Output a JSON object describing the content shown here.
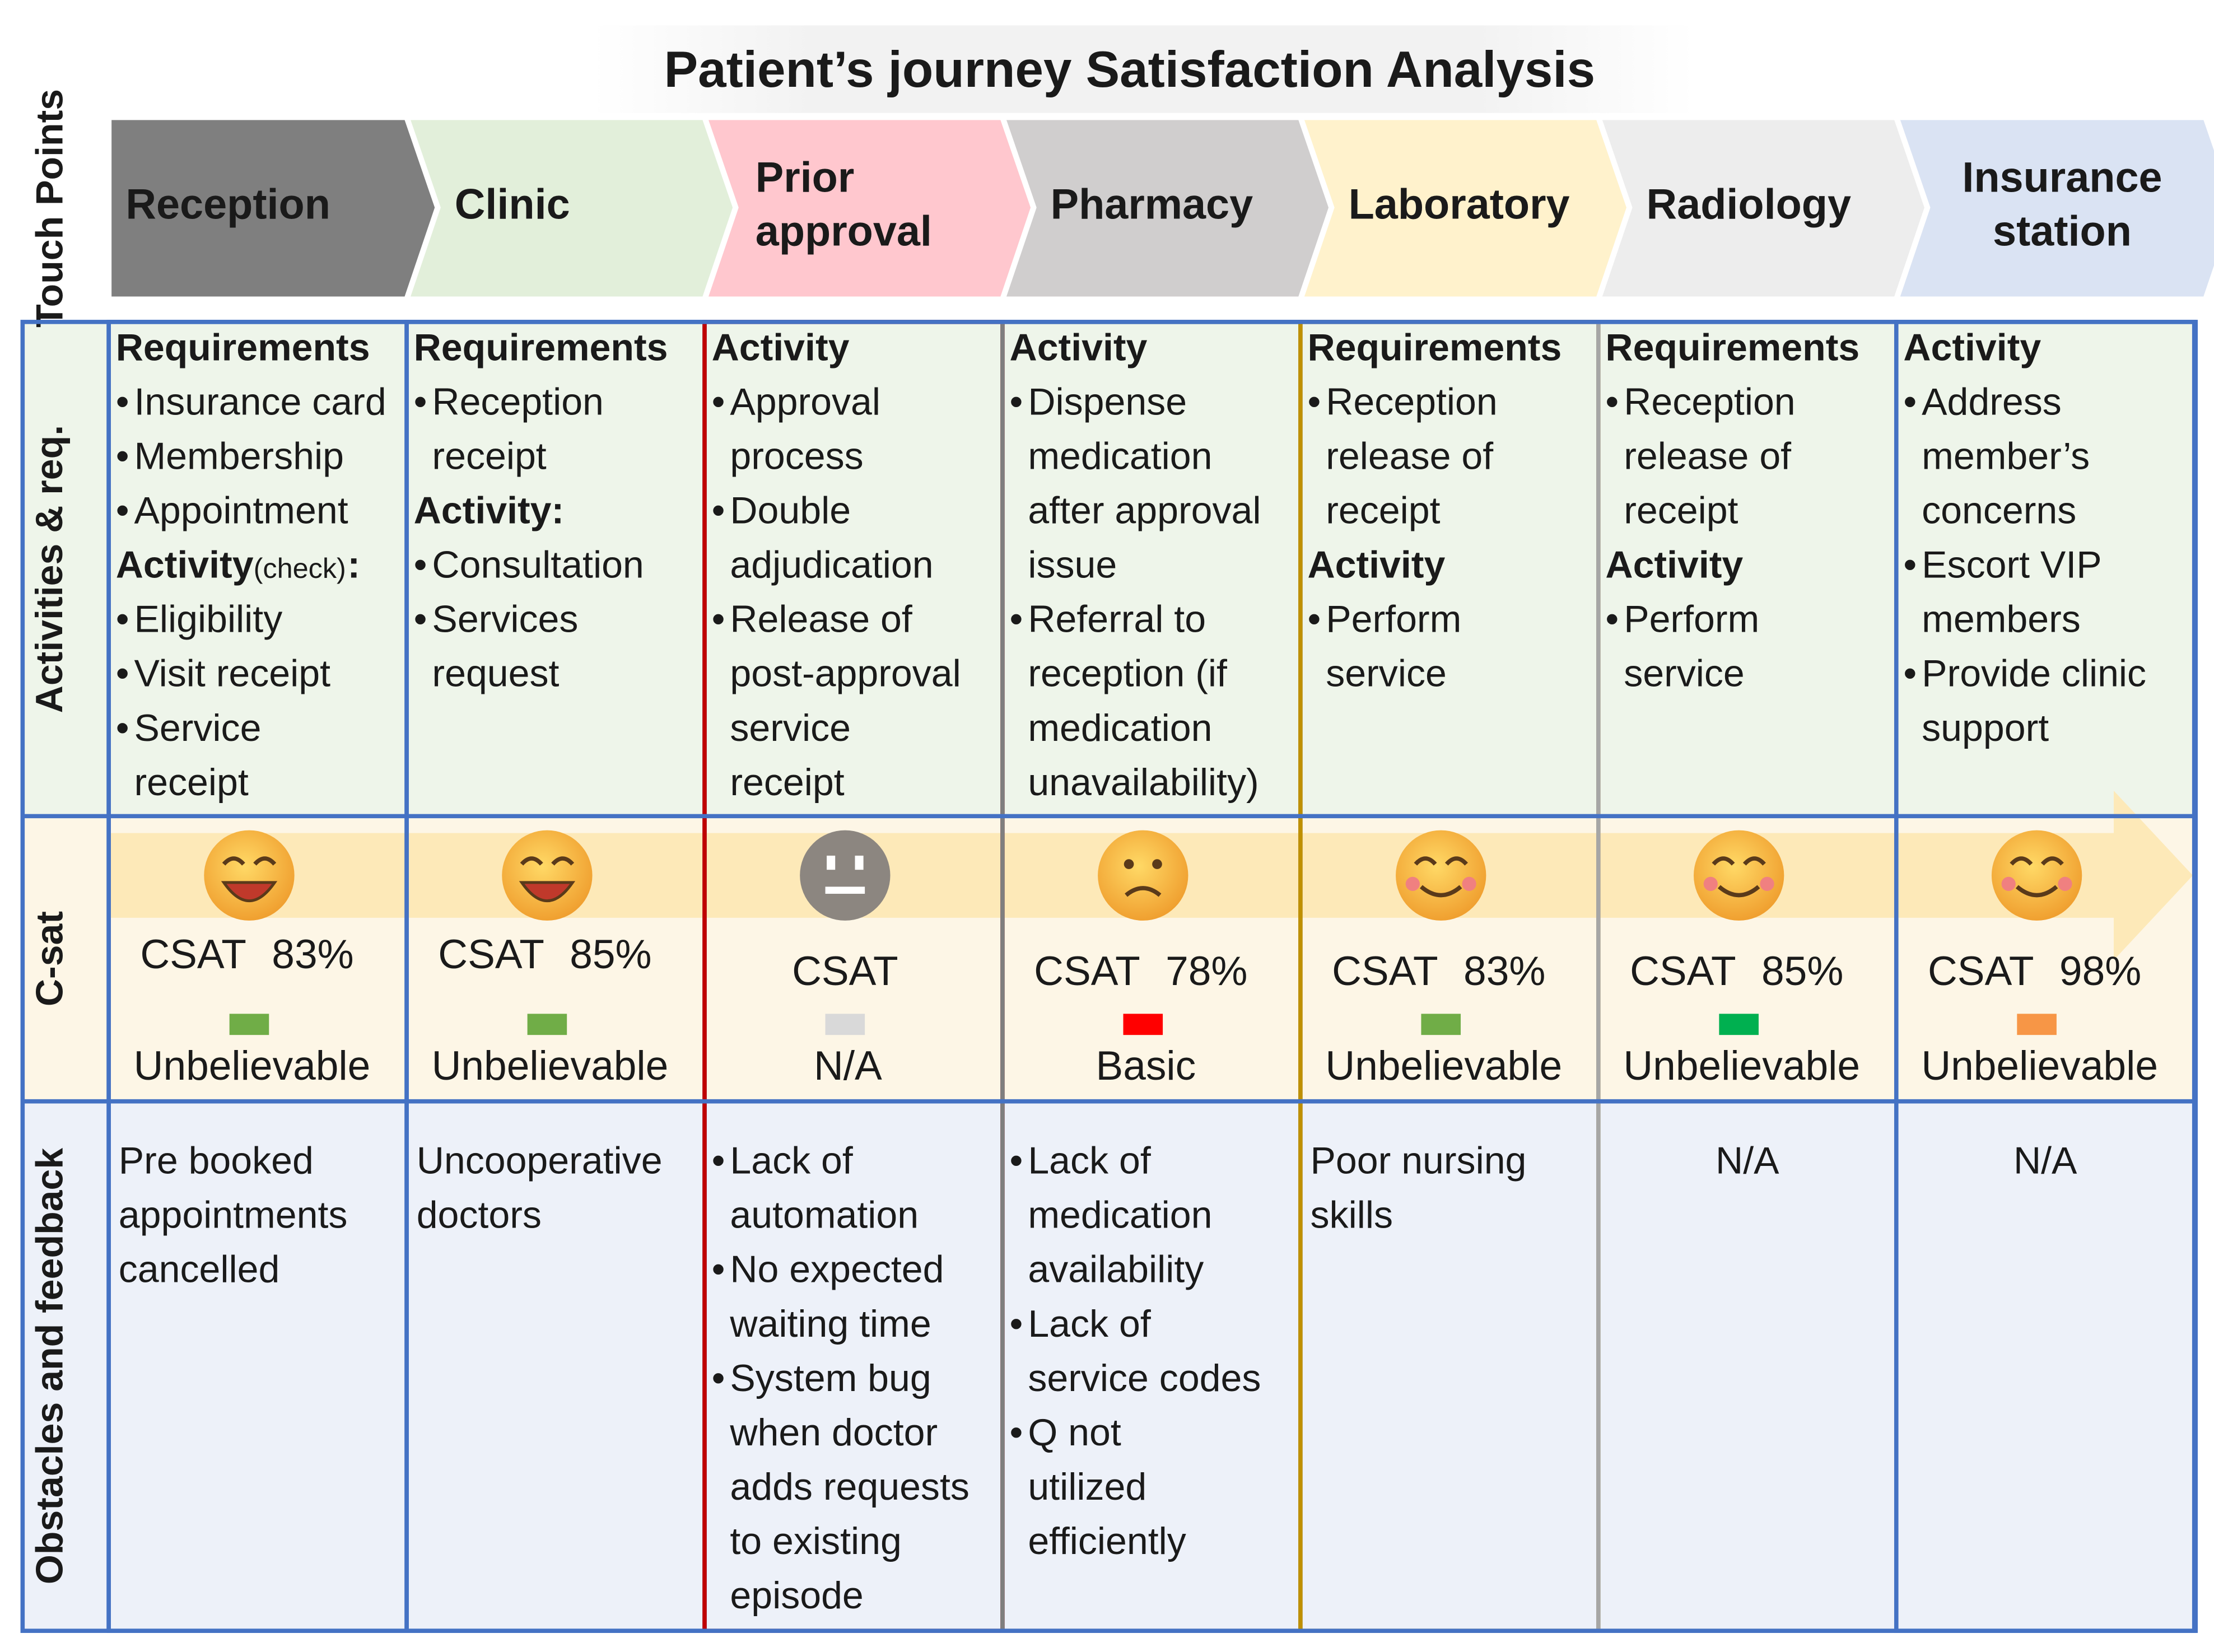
{
  "title": "Patient’s journey Satisfaction Analysis",
  "row_labels": [
    "Touch Points",
    "Activities & req.",
    "C-sat",
    "Obstacles and feedback"
  ],
  "stages": [
    {
      "name": [
        "Reception"
      ],
      "fill": "#7f7f7f",
      "text_color": "#000000",
      "border": "#4472c4",
      "activities": [
        {
          "heading": "Requirements",
          "bullets": [
            [
              "Insurance card"
            ],
            [
              "Membership"
            ],
            [
              "Appointment"
            ]
          ]
        },
        {
          "heading": "Activity",
          "note": "(check)",
          "colon": ":",
          "bullets": [
            [
              "Eligibility"
            ],
            [
              "Visit receipt"
            ],
            [
              "Service",
              "receipt"
            ]
          ]
        }
      ],
      "csat": {
        "label": "CSAT",
        "value": "83%",
        "mood": "laugh",
        "bar_color": "#70ad47",
        "rating": "Unbelievable"
      },
      "feedback": {
        "lines": [
          "Pre booked",
          "appointments",
          "cancelled"
        ]
      }
    },
    {
      "name": [
        "Clinic"
      ],
      "fill": "#e2efda",
      "text_color": "#000000",
      "border": "#4472c4",
      "activities": [
        {
          "heading": "Requirements",
          "bullets": [
            [
              "Reception",
              "receipt"
            ]
          ]
        },
        {
          "heading": "Activity:",
          "bullets": [
            [
              "Consultation"
            ],
            [
              "Services",
              "request"
            ]
          ]
        }
      ],
      "csat": {
        "label": "CSAT",
        "value": "85%",
        "mood": "laugh",
        "bar_color": "#70ad47",
        "rating": "Unbelievable"
      },
      "feedback": {
        "lines": [
          "Uncooperative",
          "doctors"
        ]
      }
    },
    {
      "name": [
        "Prior",
        "approval"
      ],
      "fill": "#ffc7ce",
      "text_color": "#000000",
      "border": "#c00000",
      "activities": [
        {
          "heading": "Activity",
          "bullets": [
            [
              "Approval",
              "process"
            ],
            [
              "Double",
              "adjudication"
            ],
            [
              "Release of",
              "post-approval",
              "service",
              "receipt"
            ]
          ]
        }
      ],
      "csat": {
        "label": "CSAT",
        "mood": "neutral",
        "bar_color": "#d9d9d9",
        "rating": "N/A"
      },
      "feedback": {
        "bullets": [
          [
            "Lack of",
            "automation"
          ],
          [
            "No expected",
            "waiting time"
          ],
          [
            "System bug",
            "when doctor",
            "adds requests",
            "to existing",
            "episode"
          ]
        ]
      }
    },
    {
      "name": [
        "Pharmacy"
      ],
      "fill": "#d0cece",
      "text_color": "#000000",
      "border": "#7f7f7f",
      "activities": [
        {
          "heading": "Activity",
          "bullets": [
            [
              "Dispense",
              "medication",
              "after approval",
              "issue"
            ],
            [
              "Referral to",
              "reception (if",
              "medication",
              "unavailability)"
            ]
          ]
        }
      ],
      "csat": {
        "label": "CSAT",
        "value": "78%",
        "mood": "sad",
        "bar_color": "#ff0000",
        "rating": "Basic"
      },
      "feedback": {
        "bullets": [
          [
            "Lack of",
            "medication",
            "availability"
          ],
          [
            "Lack of",
            "service codes"
          ],
          [
            "Q not",
            "utilized",
            "efficiently"
          ]
        ]
      }
    },
    {
      "name": [
        "Laboratory"
      ],
      "fill": "#fff2cc",
      "text_color": "#000000",
      "border": "#bf9000",
      "activities": [
        {
          "heading": "Requirements",
          "bullets": [
            [
              "Reception",
              "release of",
              "receipt"
            ]
          ]
        },
        {
          "heading": "Activity",
          "bullets": [
            [
              "Perform",
              "service"
            ]
          ]
        }
      ],
      "csat": {
        "label": "CSAT",
        "value": "83%",
        "mood": "smile",
        "bar_color": "#70ad47",
        "rating": "Unbelievable"
      },
      "feedback": {
        "lines": [
          "Poor nursing",
          "skills"
        ]
      }
    },
    {
      "name": [
        "Radiology"
      ],
      "fill": "#ededed",
      "text_color": "#000000",
      "border": "#a6a6a6",
      "activities": [
        {
          "heading": "Requirements",
          "bullets": [
            [
              "Reception",
              "release of",
              "receipt"
            ]
          ]
        },
        {
          "heading": "Activity",
          "bullets": [
            [
              "Perform",
              "service"
            ]
          ]
        }
      ],
      "csat": {
        "label": "CSAT",
        "value": "85%",
        "mood": "smile",
        "bar_color": "#00b050",
        "rating": "Unbelievable"
      },
      "feedback": {
        "lines": [
          "N/A"
        ],
        "align": "center"
      }
    },
    {
      "name": [
        "Insurance",
        "station"
      ],
      "fill": "#dae3f3",
      "text_color": "#000000",
      "border": "#4472c4",
      "activities": [
        {
          "heading": "Activity",
          "bullets": [
            [
              "Address",
              "member’s",
              "concerns"
            ],
            [
              "Escort VIP",
              "members"
            ],
            [
              "Provide clinic",
              "support"
            ]
          ]
        }
      ],
      "csat": {
        "label": "CSAT",
        "value": "98%",
        "mood": "smile",
        "bar_color": "#f79646",
        "rating": "Unbelievable"
      },
      "feedback": {
        "lines": [
          "N/A"
        ],
        "align": "center"
      }
    }
  ]
}
